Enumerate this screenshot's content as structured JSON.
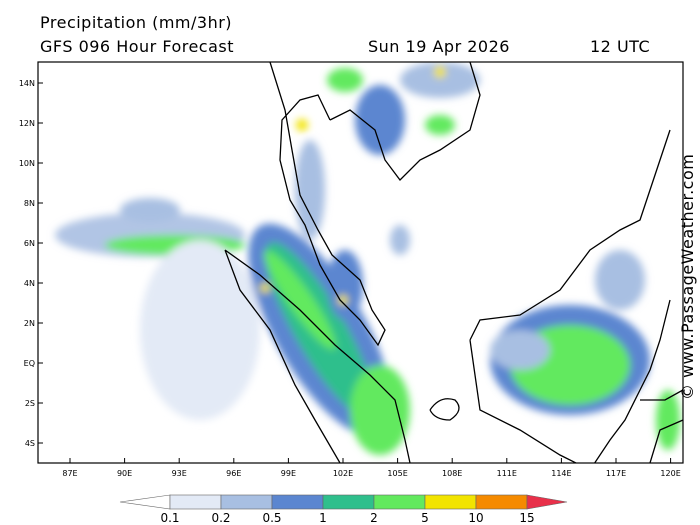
{
  "header": {
    "title": "Precipitation (mm/3hr)",
    "subtitle": "GFS 096 Hour Forecast",
    "date": "Sun 19 Apr 2026",
    "time": "12 UTC"
  },
  "map": {
    "lat_labels": [
      "14N",
      "12N",
      "10N",
      "8N",
      "6N",
      "4N",
      "2N",
      "EQ",
      "2S",
      "4S"
    ],
    "lon_labels": [
      "87E",
      "90E",
      "93E",
      "96E",
      "99E",
      "102E",
      "105E",
      "108E",
      "111E",
      "114E",
      "117E",
      "120E"
    ]
  },
  "legend": {
    "thresholds": [
      0.1,
      0.2,
      0.5,
      1,
      2,
      5,
      10,
      15
    ],
    "colors": [
      "#ffffff",
      "#e3eaf6",
      "#a8bfe2",
      "#5b86d0",
      "#2fbf8c",
      "#62e95e",
      "#f2e400",
      "#f58a00",
      "#e8304a"
    ]
  },
  "watermark": "© www.PassageWeather.com"
}
